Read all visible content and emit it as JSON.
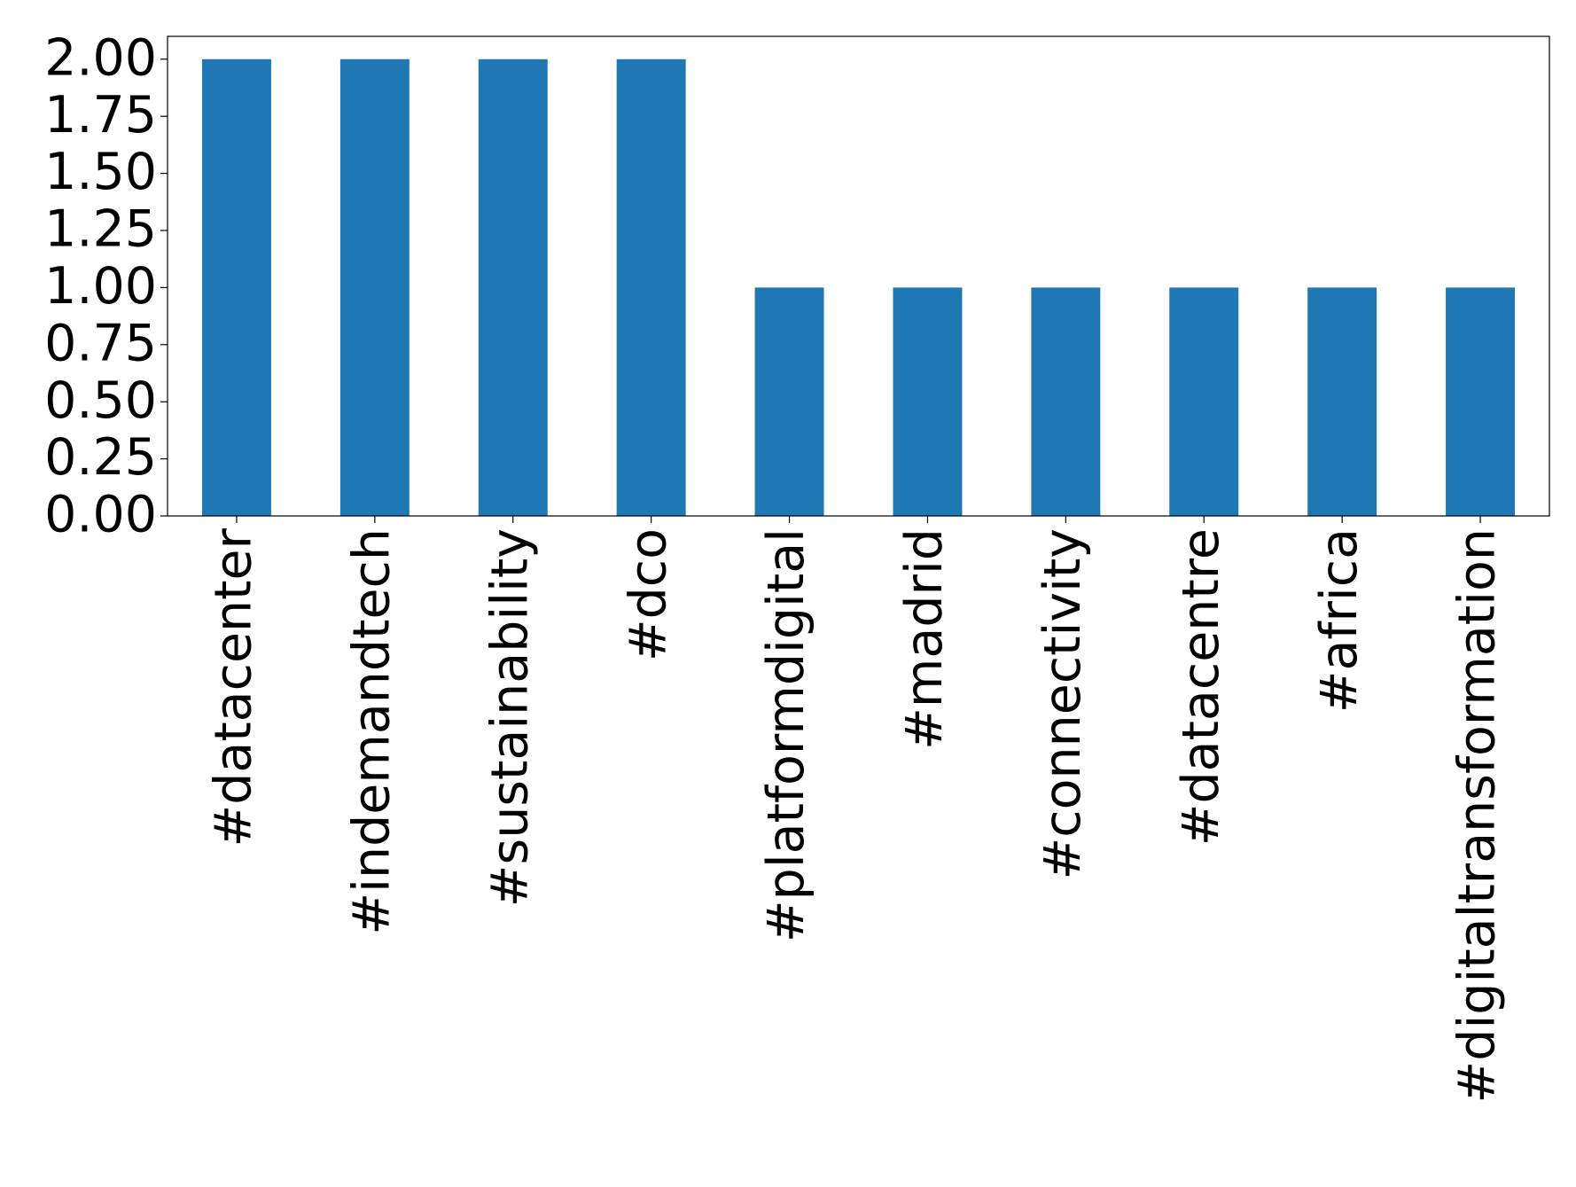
{
  "chart_data": {
    "type": "bar",
    "categories": [
      "#datacenter",
      "#indemandtech",
      "#sustainability",
      "#dco",
      "#platformdigital",
      "#madrid",
      "#connectivity",
      "#datacentre",
      "#africa",
      "#digitaltransformation"
    ],
    "values": [
      2,
      2,
      2,
      2,
      1,
      1,
      1,
      1,
      1,
      1
    ],
    "color": "#1f77b4",
    "ylim": [
      0,
      2.1
    ],
    "yticks": [
      {
        "value": 0,
        "label": "0.00"
      },
      {
        "value": 0.25,
        "label": "0.25"
      },
      {
        "value": 0.5,
        "label": "0.50"
      },
      {
        "value": 0.75,
        "label": "0.75"
      },
      {
        "value": 1,
        "label": "1.00"
      },
      {
        "value": 1.25,
        "label": "1.25"
      },
      {
        "value": 1.5,
        "label": "1.50"
      },
      {
        "value": 1.75,
        "label": "1.75"
      },
      {
        "value": 2,
        "label": "2.00"
      }
    ],
    "grid": false
  }
}
